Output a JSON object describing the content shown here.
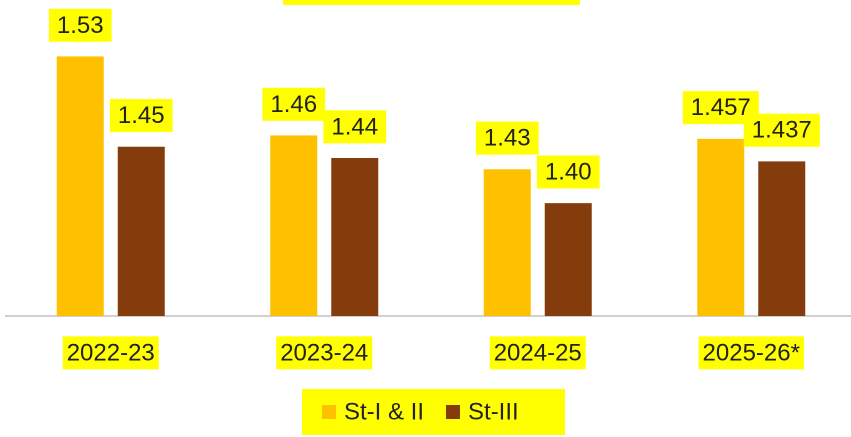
{
  "chart_data": {
    "type": "bar",
    "categories": [
      "2022-23",
      "2023-24",
      "2024-25",
      "2025-26*"
    ],
    "series": [
      {
        "name": "St-I & II",
        "color": "#FFC000",
        "values": [
          1.53,
          1.46,
          1.43,
          1.457
        ],
        "value_labels": [
          "1.53",
          "1.46",
          "1.43",
          "1.457"
        ]
      },
      {
        "name": "St-III",
        "color": "#843C0C",
        "values": [
          1.45,
          1.44,
          1.4,
          1.437
        ],
        "value_labels": [
          "1.45",
          "1.44",
          "1.40",
          "1.437"
        ]
      }
    ],
    "ylim": [
      1.3,
      1.58
    ],
    "label_background": "#FFFF00"
  }
}
